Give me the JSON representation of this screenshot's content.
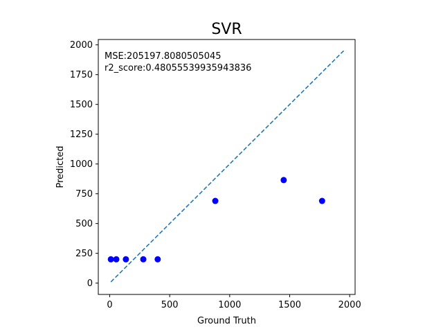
{
  "chart_data": {
    "type": "scatter",
    "title": "SVR",
    "xlabel": "Ground Truth",
    "ylabel": "Predicted",
    "xlim": [
      -95,
      2045
    ],
    "ylim": [
      -95,
      2045
    ],
    "xticks": [
      0,
      500,
      1000,
      1500,
      2000
    ],
    "yticks": [
      0,
      250,
      500,
      750,
      1000,
      1250,
      1500,
      1750,
      2000
    ],
    "grid": false,
    "annotations": [
      "MSE:205197.8080505045",
      "r2_score:0.48055539935943836"
    ],
    "series": [
      {
        "type": "scatter",
        "color": "#0000ff",
        "x": [
          10,
          55,
          135,
          280,
          400,
          880,
          1450,
          1770
        ],
        "y": [
          200,
          200,
          200,
          200,
          200,
          690,
          865,
          690
        ]
      },
      {
        "type": "line",
        "style": "dashed",
        "color": "#1f77b4",
        "x": [
          10,
          1950
        ],
        "y": [
          10,
          1950
        ]
      }
    ]
  }
}
